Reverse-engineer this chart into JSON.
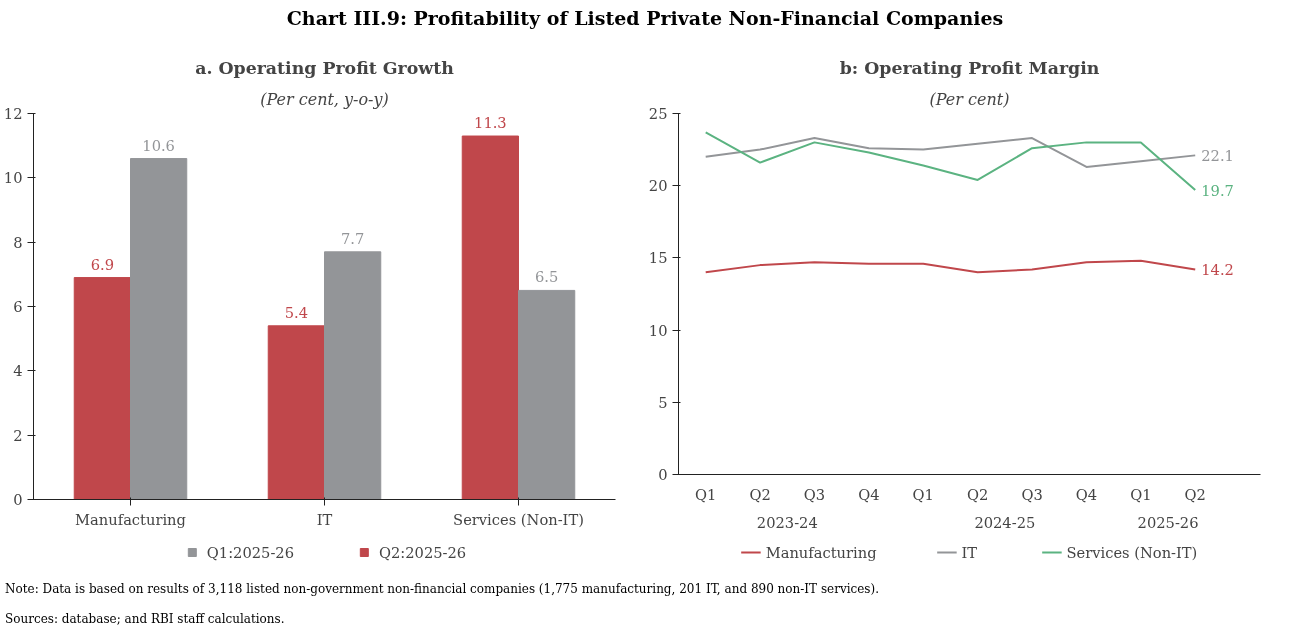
{
  "chart_data": [
    {
      "type": "bar",
      "title": "a. Operating Profit Growth",
      "subtitle": "(Per cent, y-o-y)",
      "categories": [
        "Manufacturing",
        "IT",
        "Services (Non-IT)"
      ],
      "series": [
        {
          "name": "Q2:2025-26",
          "color": "#c0474b",
          "values": [
            6.9,
            5.4,
            11.3
          ]
        },
        {
          "name": "Q1:2025-26",
          "color": "#939598",
          "values": [
            10.6,
            7.7,
            6.5
          ]
        }
      ],
      "ylim": [
        0,
        12
      ],
      "yticks": [
        0,
        2,
        4,
        6,
        8,
        10,
        12
      ],
      "grid": false,
      "legend": "bottom",
      "data_labels": true,
      "annotations": [
        "Chart III.9: Profitability of Listed Private Non-Financial Companies",
        "Note: Data is based on results of 3,118 listed non-government non-financial companies (1,775 manufacturing, 201 IT, and 890 non-IT services).",
        "Sources: database; and RBI staff calculations."
      ]
    },
    {
      "type": "line",
      "title": "b: Operating Profit Margin",
      "subtitle": "(Per cent)",
      "categories": [
        "Q1",
        "Q2",
        "Q3",
        "Q4",
        "Q1",
        "Q2",
        "Q3",
        "Q4",
        "Q1",
        "Q2"
      ],
      "series": [
        {
          "name": "Manufacturing",
          "color": "#c0474b",
          "values": [
            14.0,
            14.5,
            14.7,
            14.6,
            14.6,
            14.0,
            14.2,
            14.7,
            14.8,
            14.2
          ],
          "value_labels": [
            null,
            null,
            null,
            null,
            null,
            null,
            null,
            null,
            null,
            "14.2"
          ]
        },
        {
          "name": "IT",
          "color": "#939598",
          "values": [
            22.0,
            22.5,
            23.3,
            22.6,
            22.5,
            22.9,
            23.3,
            21.3,
            21.7,
            22.1
          ],
          "value_labels": [
            null,
            null,
            null,
            null,
            null,
            null,
            null,
            null,
            null,
            "22.1"
          ]
        },
        {
          "name": "Services (Non-IT)",
          "color": "#5bb381",
          "values": [
            23.7,
            21.6,
            23.0,
            22.3,
            21.4,
            20.4,
            22.6,
            23.0,
            23.0,
            19.7
          ],
          "value_labels": [
            null,
            null,
            null,
            null,
            null,
            null,
            null,
            null,
            null,
            "19.7"
          ]
        }
      ],
      "ylim": [
        0,
        25
      ],
      "yticks": [
        0,
        5,
        10,
        15,
        20,
        25
      ],
      "grid": false,
      "legend": "bottom",
      "annotations": [
        "2023-24",
        "2024-25",
        "2025-26"
      ]
    }
  ]
}
